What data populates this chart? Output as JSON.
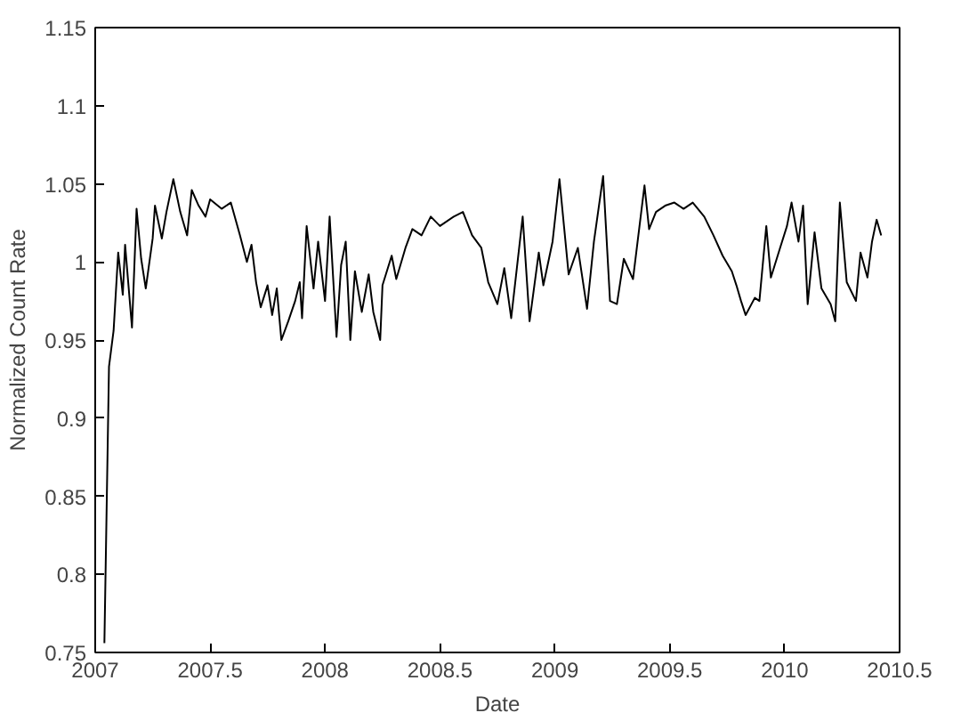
{
  "chart_data": {
    "type": "line",
    "xlabel": "Date",
    "ylabel": "Normalized Count Rate",
    "grid": false,
    "marker": "none",
    "line_style": "solid",
    "xlim": [
      2007,
      2010.5
    ],
    "xticks": [
      2007,
      2007.5,
      2008,
      2008.5,
      2009,
      2009.5,
      2010,
      2010.5
    ],
    "ylim": [
      0.75,
      1.15
    ],
    "yticks": [
      0.75,
      0.8,
      0.85,
      0.9,
      0.95,
      1,
      1.05,
      1.1,
      1.15
    ],
    "series": [
      {
        "color": "#000000",
        "x": [
          2007.04,
          2007.06,
          2007.08,
          2007.1,
          2007.12,
          2007.13,
          2007.16,
          2007.18,
          2007.2,
          2007.22,
          2007.25,
          2007.26,
          2007.29,
          2007.31,
          2007.34,
          2007.37,
          2007.4,
          2007.42,
          2007.45,
          2007.48,
          2007.5,
          2007.55,
          2007.59,
          2007.63,
          2007.66,
          2007.68,
          2007.7,
          2007.72,
          2007.75,
          2007.77,
          2007.79,
          2007.81,
          2007.84,
          2007.87,
          2007.89,
          2007.9,
          2007.92,
          2007.95,
          2007.97,
          2008.0,
          2008.02,
          2008.05,
          2008.07,
          2008.09,
          2008.11,
          2008.13,
          2008.16,
          2008.19,
          2008.21,
          2008.24,
          2008.25,
          2008.29,
          2008.31,
          2008.35,
          2008.38,
          2008.42,
          2008.46,
          2008.5,
          2008.56,
          2008.6,
          2008.64,
          2008.68,
          2008.71,
          2008.75,
          2008.78,
          2008.81,
          2008.86,
          2008.89,
          2008.93,
          2008.95,
          2008.99,
          2009.02,
          2009.06,
          2009.1,
          2009.14,
          2009.17,
          2009.21,
          2009.24,
          2009.27,
          2009.3,
          2009.34,
          2009.36,
          2009.39,
          2009.41,
          2009.44,
          2009.48,
          2009.52,
          2009.56,
          2009.6,
          2009.65,
          2009.69,
          2009.73,
          2009.77,
          2009.79,
          2009.81,
          2009.83,
          2009.87,
          2009.89,
          2009.92,
          2009.94,
          2009.98,
          2010.01,
          2010.03,
          2010.06,
          2010.08,
          2010.1,
          2010.13,
          2010.16,
          2010.2,
          2010.22,
          2010.24,
          2010.27,
          2010.31,
          2010.33,
          2010.36,
          2010.38,
          2010.4,
          2010.42
        ],
        "values": [
          0.756,
          0.933,
          0.956,
          1.006,
          0.979,
          1.011,
          0.958,
          1.034,
          1.002,
          0.983,
          1.015,
          1.036,
          1.015,
          1.032,
          1.053,
          1.032,
          1.017,
          1.046,
          1.036,
          1.029,
          1.04,
          1.034,
          1.038,
          1.017,
          1.0,
          1.011,
          0.987,
          0.971,
          0.985,
          0.966,
          0.983,
          0.95,
          0.962,
          0.975,
          0.987,
          0.964,
          1.023,
          0.983,
          1.013,
          0.975,
          1.029,
          0.952,
          0.998,
          1.013,
          0.95,
          0.994,
          0.968,
          0.992,
          0.968,
          0.95,
          0.985,
          1.004,
          0.989,
          1.009,
          1.021,
          1.017,
          1.029,
          1.023,
          1.029,
          1.032,
          1.017,
          1.009,
          0.987,
          0.973,
          0.996,
          0.964,
          1.029,
          0.962,
          1.006,
          0.985,
          1.013,
          1.053,
          0.992,
          1.009,
          0.97,
          1.013,
          1.055,
          0.975,
          0.973,
          1.002,
          0.989,
          1.013,
          1.049,
          1.021,
          1.032,
          1.036,
          1.038,
          1.034,
          1.038,
          1.029,
          1.017,
          1.004,
          0.994,
          0.985,
          0.975,
          0.966,
          0.977,
          0.975,
          1.023,
          0.99,
          1.009,
          1.023,
          1.038,
          1.013,
          1.036,
          0.973,
          1.019,
          0.983,
          0.973,
          0.962,
          1.038,
          0.987,
          0.975,
          1.006,
          0.99,
          1.013,
          1.027,
          1.017
        ]
      }
    ]
  }
}
